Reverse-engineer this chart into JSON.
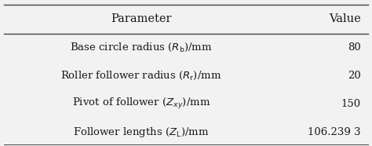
{
  "headers": [
    "Parameter",
    "Value"
  ],
  "rows": [
    [
      "Base circle radius ($R_{\\rm b}$)/mm",
      "80"
    ],
    [
      "Roller follower radius ($R_{\\rm r}$)/mm",
      "20"
    ],
    [
      "Pivot of follower ($Z_{xy}$)/mm",
      "150"
    ],
    [
      "Follower lengths ($Z_{\\rm L}$)/mm",
      "106.239 3"
    ]
  ],
  "bg_color": "#f2f2f2",
  "text_color": "#1a1a1a",
  "line_color": "#444444",
  "font_size": 9.5,
  "header_font_size": 10.5,
  "figsize": [
    4.74,
    1.86
  ],
  "dpi": 100
}
